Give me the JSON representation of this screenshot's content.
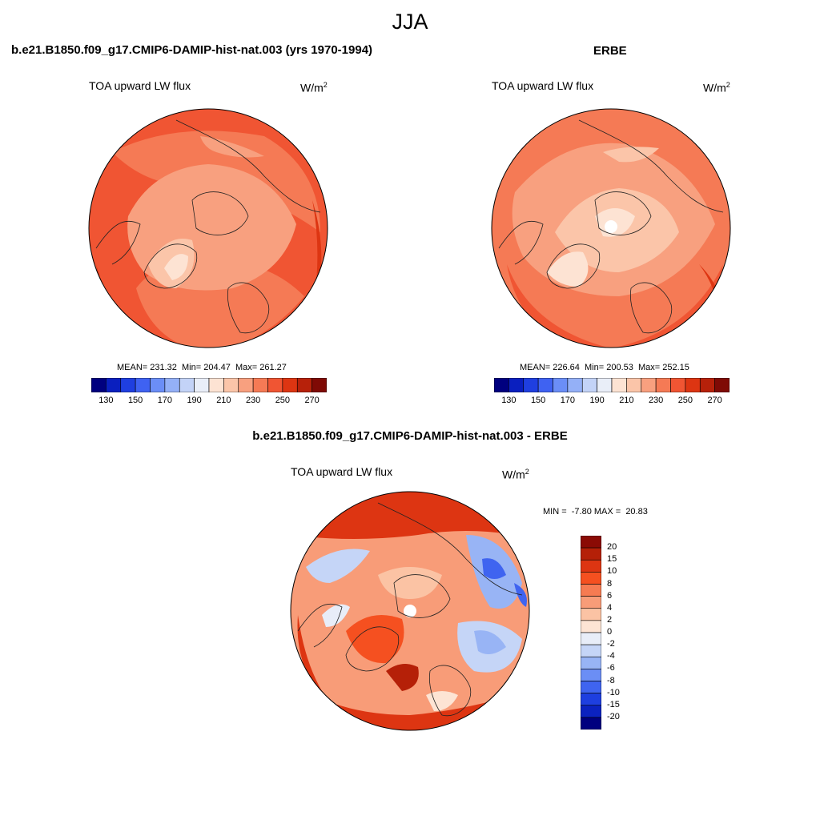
{
  "figure": {
    "season_title": "JJA"
  },
  "panels": {
    "model": {
      "title": "b.e21.B1850.f09_g17.CMIP6-DAMIP-hist-nat.003 (yrs 1970-1994)",
      "variable": "TOA upward LW flux",
      "units_base": "W/m",
      "units_exp": "2",
      "stats": "MEAN= 231.32  Min= 204.47  Max= 261.27",
      "mean": 231.32,
      "min": 204.47,
      "max": 261.27
    },
    "obs": {
      "title": "ERBE",
      "variable": "TOA upward LW flux",
      "units_base": "W/m",
      "units_exp": "2",
      "stats": "MEAN= 226.64  Min= 200.53  Max= 252.15",
      "mean": 226.64,
      "min": 200.53,
      "max": 252.15
    },
    "diff": {
      "title": "b.e21.B1850.f09_g17.CMIP6-DAMIP-hist-nat.003 - ERBE",
      "variable": "TOA upward LW flux",
      "units_base": "W/m",
      "units_exp": "2",
      "stats": "MIN =  -7.80 MAX =  20.83",
      "min": -7.8,
      "max": 20.83
    }
  },
  "colorbars": {
    "field": {
      "labels": [
        "130",
        "150",
        "170",
        "190",
        "210",
        "230",
        "250",
        "270"
      ],
      "colors": [
        "#00007f",
        "#0a1fbf",
        "#1f3fe0",
        "#3f62f2",
        "#6b8ef7",
        "#94b0f7",
        "#c3d3f7",
        "#e9eef8",
        "#fde3d3",
        "#fbc5a9",
        "#f8a07f",
        "#f57a55",
        "#f05533",
        "#dd3512",
        "#b7210a",
        "#7f0a05"
      ]
    },
    "diff": {
      "labels": [
        "20",
        "15",
        "10",
        "8",
        "6",
        "4",
        "2",
        "0",
        "-2",
        "-4",
        "-6",
        "-8",
        "-10",
        "-15",
        "-20"
      ],
      "colors": [
        "#8b0b05",
        "#b52008",
        "#dd3512",
        "#f55020",
        "#f67b52",
        "#f89c78",
        "#fbc3a4",
        "#fde4d4",
        "#e8edf8",
        "#c5d5f7",
        "#98b4f5",
        "#6b8ef5",
        "#3f64f0",
        "#1e3fe0",
        "#0b22c0",
        "#00007f"
      ]
    }
  }
}
